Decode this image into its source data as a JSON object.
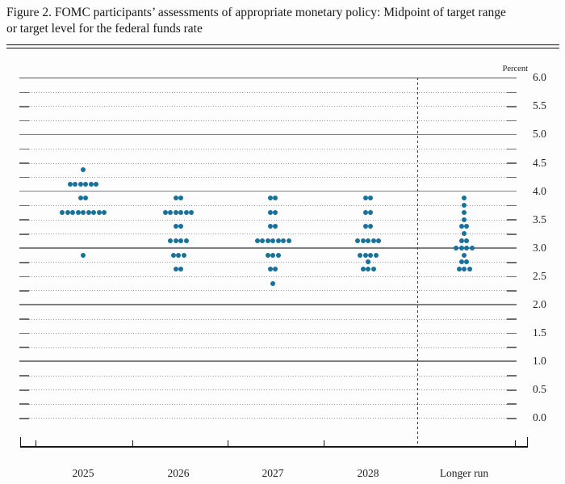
{
  "figure": {
    "title_line1": "Figure 2. FOMC participants’ assessments of appropriate monetary policy: Midpoint of target range",
    "title_line2": "or target level for the federal funds rate"
  },
  "chart_data": {
    "type": "scatter",
    "subtype": "fomc-dot-plot",
    "title": "FOMC participants’ assessments of appropriate monetary policy: Midpoint of target range or target level for the federal funds rate",
    "ylabel": "Percent",
    "ylim": [
      0.0,
      6.0
    ],
    "grid_step": 0.25,
    "label_step": 0.5,
    "grid_style": "dotted quarters, solid integers, dashed separator before Longer run",
    "legend_position": "none",
    "y_tick_labels": [
      "6.0",
      "5.5",
      "5.0",
      "4.5",
      "4.0",
      "3.5",
      "3.0",
      "2.5",
      "2.0",
      "1.5",
      "1.0",
      "0.5",
      "0.0"
    ],
    "categories": [
      "2025",
      "2026",
      "2027",
      "2028",
      "Longer run"
    ],
    "series": [
      {
        "name": "2025",
        "dots": [
          [
            4.375,
            1
          ],
          [
            4.125,
            6
          ],
          [
            3.875,
            2
          ],
          [
            3.625,
            9
          ],
          [
            2.875,
            1
          ]
        ]
      },
      {
        "name": "2026",
        "dots": [
          [
            3.875,
            2
          ],
          [
            3.625,
            6
          ],
          [
            3.375,
            2
          ],
          [
            3.125,
            4
          ],
          [
            2.875,
            3
          ],
          [
            2.625,
            2
          ]
        ]
      },
      {
        "name": "2027",
        "dots": [
          [
            3.875,
            2
          ],
          [
            3.625,
            2
          ],
          [
            3.375,
            2
          ],
          [
            3.125,
            7
          ],
          [
            2.875,
            3
          ],
          [
            2.625,
            2
          ],
          [
            2.375,
            1
          ]
        ]
      },
      {
        "name": "2028",
        "dots": [
          [
            3.875,
            2
          ],
          [
            3.625,
            2
          ],
          [
            3.375,
            2
          ],
          [
            3.125,
            5
          ],
          [
            2.875,
            4
          ],
          [
            2.75,
            1
          ],
          [
            2.625,
            3
          ]
        ]
      },
      {
        "name": "Longer run",
        "dots": [
          [
            3.875,
            1
          ],
          [
            3.75,
            1
          ],
          [
            3.625,
            1
          ],
          [
            3.5,
            1
          ],
          [
            3.375,
            2
          ],
          [
            3.25,
            1
          ],
          [
            3.125,
            2
          ],
          [
            3.0,
            4
          ],
          [
            2.875,
            1
          ],
          [
            2.75,
            2
          ],
          [
            2.625,
            3
          ]
        ]
      }
    ],
    "participants_per_column": 19,
    "dot_color": "#17719b"
  }
}
